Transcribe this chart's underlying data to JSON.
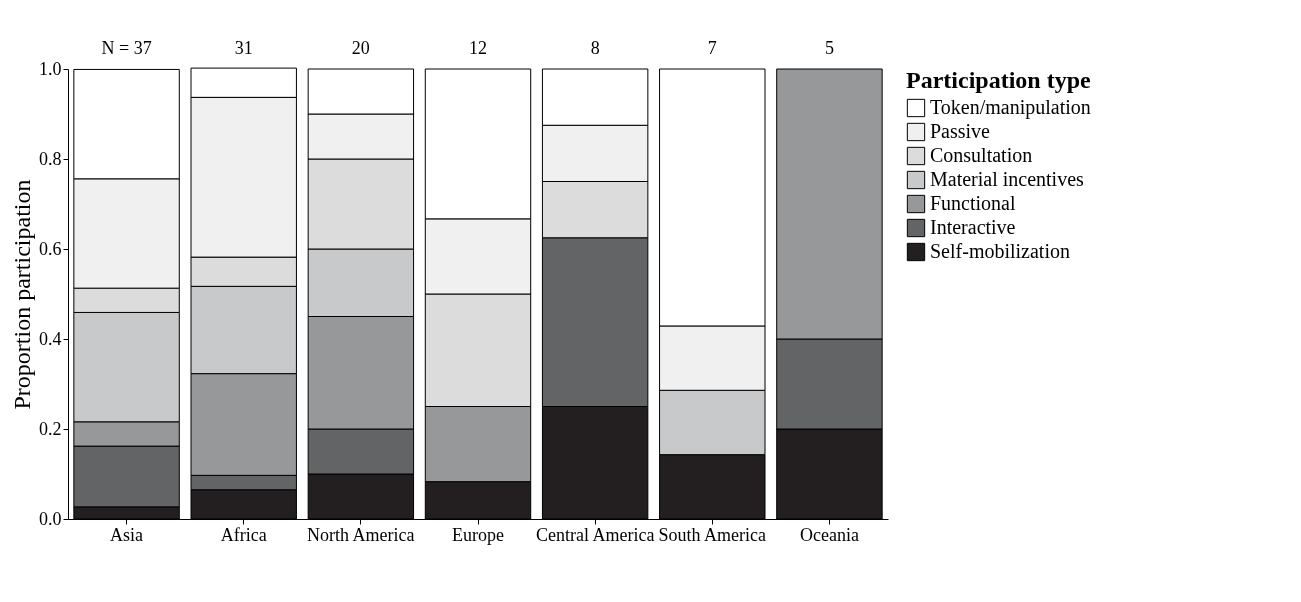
{
  "chart_data": {
    "type": "bar",
    "stacked": true,
    "ylabel": "Proportion participation",
    "legend_title": "Participation type",
    "legend": "right",
    "categories": [
      "Asia",
      "Africa",
      "North America",
      "Europe",
      "Central America",
      "South America",
      "Oceania"
    ],
    "series": [
      {
        "name": "Self-mobilization",
        "color": "#231f20",
        "values": [
          0.027,
          0.065,
          0.1,
          0.083,
          0.25,
          0.143,
          0.2
        ]
      },
      {
        "name": "Interactive",
        "color": "#636466",
        "values": [
          0.135,
          0.032,
          0.1,
          0,
          0.375,
          0,
          0.2
        ]
      },
      {
        "name": "Functional",
        "color": "#97989a",
        "values": [
          0.054,
          0.226,
          0.25,
          0.167,
          0,
          0,
          0.6
        ]
      },
      {
        "name": "Material incentives",
        "color": "#c8c9cb",
        "values": [
          0.243,
          0.194,
          0.15,
          0,
          0,
          0.143,
          0
        ]
      },
      {
        "name": "Consultation",
        "color": "#dcdcdc",
        "values": [
          0.054,
          0.065,
          0.2,
          0.25,
          0.125,
          0,
          0
        ]
      },
      {
        "name": "Passive",
        "color": "#f0f0f0",
        "values": [
          0.243,
          0.355,
          0.1,
          0.167,
          0.125,
          0.143,
          0
        ]
      },
      {
        "name": "Token/manipulation",
        "color": "#ffffff",
        "values": [
          0.243,
          0.065,
          0.1,
          0.333,
          0.125,
          0.571,
          0
        ]
      }
    ],
    "ylim": [
      0,
      1
    ],
    "yticks": [
      {
        "value": 0,
        "label": "0.0"
      },
      {
        "value": 0.2,
        "label": "0.2"
      },
      {
        "value": 0.4,
        "label": "0.4"
      },
      {
        "value": 0.6,
        "label": "0.6"
      },
      {
        "value": 0.8,
        "label": "0.8"
      },
      {
        "value": 1,
        "label": "1.0"
      }
    ],
    "grid": false,
    "annotations": [
      {
        "text": "N = 37",
        "x": "Asia",
        "y": 1
      },
      {
        "text": "31",
        "x": "Africa",
        "y": 1
      },
      {
        "text": "20",
        "x": "North America",
        "y": 1
      },
      {
        "text": "12",
        "x": "Europe",
        "y": 1
      },
      {
        "text": "8",
        "x": "Central America",
        "y": 1
      },
      {
        "text": "7",
        "x": "South America",
        "y": 1
      },
      {
        "text": "5",
        "x": "Oceania",
        "y": 1
      }
    ]
  }
}
